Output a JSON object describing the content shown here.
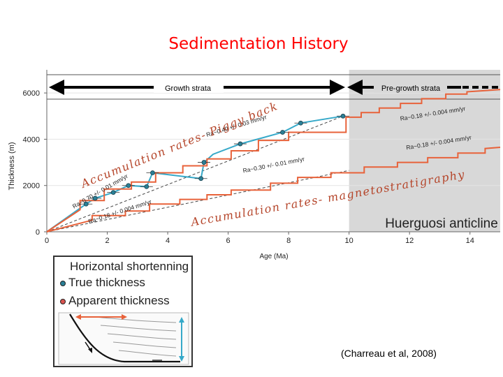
{
  "slide_title": "Sedimentation History",
  "citation": "(Charreau et al, 2008)",
  "legend": {
    "heading": "Horizontal shortenning",
    "items": [
      {
        "label": "True thickness",
        "color": "#2a7f96"
      },
      {
        "label": "Apparent thickness",
        "color": "#d9534f"
      }
    ]
  },
  "colors": {
    "true_line": "#36a9c9",
    "apparent_line": "#e8623a",
    "pregrowth_fill": "#d8d8d8",
    "slide_title": "#ff0000",
    "handwritten": "#b5452a"
  },
  "chart_data": {
    "type": "line",
    "xlabel": "Age (Ma)",
    "ylabel": "Thickness (m)",
    "xlim": [
      0,
      15
    ],
    "ylim": [
      0,
      7000
    ],
    "x_ticks": [
      0,
      2,
      4,
      6,
      8,
      10,
      12,
      14
    ],
    "y_ticks": [
      0,
      2000,
      4000,
      6000
    ],
    "pregrowth_from_age": 10,
    "banner": {
      "growth_label": "Growth strata",
      "pregrowth_label": "Pre-growth strata",
      "boundary_age": 10
    },
    "anticline_label": "Huerguosi anticline",
    "series": [
      {
        "name": "True thickness",
        "color": "#36a9c9",
        "x": [
          0,
          1.3,
          1.6,
          2.2,
          2.7,
          3.3,
          3.5,
          5.1,
          5.2,
          5.5,
          6.4,
          7.8,
          8.4,
          9.8
        ],
        "y": [
          0,
          1200,
          1450,
          1700,
          2000,
          1950,
          2550,
          2300,
          3000,
          3350,
          3800,
          4300,
          4700,
          5000
        ]
      },
      {
        "name": "Apparent thickness (upper)",
        "color": "#e8623a",
        "x": [
          0,
          1.1,
          1.1,
          1.9,
          1.9,
          2.8,
          2.8,
          3.6,
          3.6,
          4.5,
          4.5,
          5.3,
          5.3,
          6.1,
          6.1,
          7.0,
          7.0,
          8.0,
          8.0,
          9.9,
          9.9,
          10.4,
          10.4,
          11.0,
          11.0,
          11.7,
          11.7,
          12.4,
          12.4,
          13.2,
          13.2,
          13.9,
          13.9,
          15
        ],
        "y": [
          0,
          950,
          1350,
          1350,
          1850,
          1850,
          2150,
          2150,
          2550,
          2550,
          2850,
          2850,
          3150,
          3150,
          3500,
          3500,
          3950,
          3950,
          4300,
          4300,
          4950,
          4950,
          5150,
          5150,
          5350,
          5350,
          5550,
          5550,
          5750,
          5750,
          5950,
          5950,
          6050,
          6150
        ]
      },
      {
        "name": "Apparent thickness (lower)",
        "color": "#e8623a",
        "x": [
          0,
          1.5,
          1.5,
          2.6,
          2.6,
          3.4,
          3.4,
          4.4,
          4.4,
          5.3,
          5.3,
          6.1,
          6.1,
          7.4,
          7.4,
          8.3,
          8.3,
          9.4,
          9.4,
          10.5,
          10.5,
          11.6,
          11.6,
          12.6,
          12.6,
          13.6,
          13.6,
          14.5,
          14.5,
          15
        ],
        "y": [
          0,
          500,
          700,
          700,
          900,
          900,
          1200,
          1200,
          1400,
          1400,
          1600,
          1600,
          1800,
          1800,
          2100,
          2100,
          2350,
          2350,
          2550,
          2550,
          2800,
          2800,
          3000,
          3000,
          3200,
          3200,
          3400,
          3400,
          3600,
          3650
        ]
      }
    ],
    "true_points": {
      "x": [
        1.3,
        1.6,
        2.2,
        2.7,
        3.3,
        3.5,
        5.1,
        5.2,
        6.4,
        7.8,
        8.4,
        9.8
      ],
      "y": [
        1200,
        1450,
        1700,
        2000,
        1950,
        2550,
        2300,
        3000,
        3800,
        4300,
        4700,
        5000
      ]
    },
    "trend_lines": [
      {
        "x": [
          0,
          9.8
        ],
        "y": [
          0,
          5000
        ]
      },
      {
        "x": [
          0,
          10
        ],
        "y": [
          0,
          2650
        ]
      }
    ],
    "rate_labels": [
      {
        "text": "Ra~0.40 +/- 0.03 mm/yr",
        "x": 5.3,
        "y": 4100,
        "angle": -17
      },
      {
        "text": "Ra~0.30 +/- 0.01 mm/yr",
        "x": 6.5,
        "y": 2550,
        "angle": -11
      },
      {
        "text": "Ra~0.70 +/- 0.01 mm/yr",
        "x": 0.9,
        "y": 1000,
        "angle": -30
      },
      {
        "text": "Ra~0.18 +/- 0.004 mm/yr",
        "x": 1.4,
        "y": 350,
        "angle": -18
      },
      {
        "text": "Ra~0.18 +/- 0.004 mm/yr",
        "x": 11.7,
        "y": 4800,
        "angle": -9
      },
      {
        "text": "Ra~0.18 +/- 0.004 mm/yr",
        "x": 11.9,
        "y": 3550,
        "angle": -9
      }
    ],
    "annotations": [
      {
        "text": "Accumulation rates- Piggy back",
        "x": 1.2,
        "y": 1900,
        "angle": -22
      },
      {
        "text": "Accumulation rates- magnetostratigraphy",
        "x": 4.8,
        "y": 250,
        "angle": -10
      }
    ]
  }
}
